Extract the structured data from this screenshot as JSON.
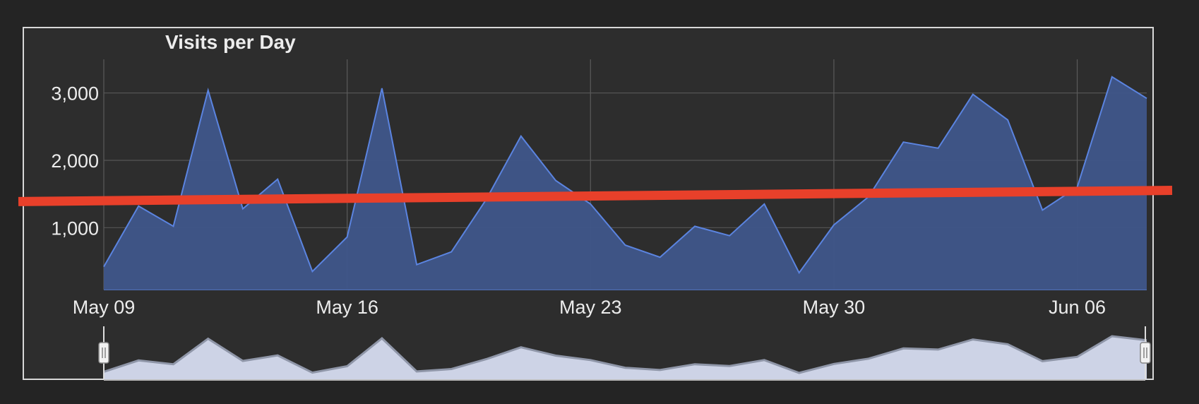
{
  "chart_data": {
    "type": "area",
    "title": "Visits per Day",
    "xlabel": "",
    "ylabel": "",
    "x": [
      "2020-05-09",
      "2020-05-10",
      "2020-05-11",
      "2020-05-12",
      "2020-05-13",
      "2020-05-14",
      "2020-05-15",
      "2020-05-16",
      "2020-05-17",
      "2020-05-18",
      "2020-05-19",
      "2020-05-20",
      "2020-05-21",
      "2020-05-22",
      "2020-05-23",
      "2020-05-24",
      "2020-05-25",
      "2020-05-26",
      "2020-05-27",
      "2020-05-28",
      "2020-05-29",
      "2020-05-30",
      "2020-05-31",
      "2020-06-01",
      "2020-06-02",
      "2020-06-03",
      "2020-06-04",
      "2020-06-05",
      "2020-06-06",
      "2020-06-07",
      "2020-06-08"
    ],
    "series": [
      {
        "values": [
          420,
          1320,
          1020,
          3040,
          1280,
          1720,
          350,
          860,
          3070,
          450,
          640,
          1420,
          2360,
          1700,
          1350,
          740,
          560,
          1020,
          880,
          1350,
          330,
          1040,
          1460,
          2270,
          2180,
          2980,
          2600,
          1260,
          1600,
          3240,
          2920
        ]
      }
    ],
    "trendline": {
      "start": 1400,
      "end": 1550,
      "color": "#e8402a"
    },
    "xticks": [
      "May 09",
      "May 16",
      "May 23",
      "May 30",
      "Jun 06"
    ],
    "yticks": [
      "1,000",
      "2,000",
      "3,000"
    ],
    "ylim": [
      80,
      3500
    ],
    "grid": true,
    "colors": {
      "fill": "#3f568a",
      "line": "#5b84e0",
      "navigator_fill": "#cdd3e6",
      "navigator_line": "#8f96a8"
    }
  }
}
